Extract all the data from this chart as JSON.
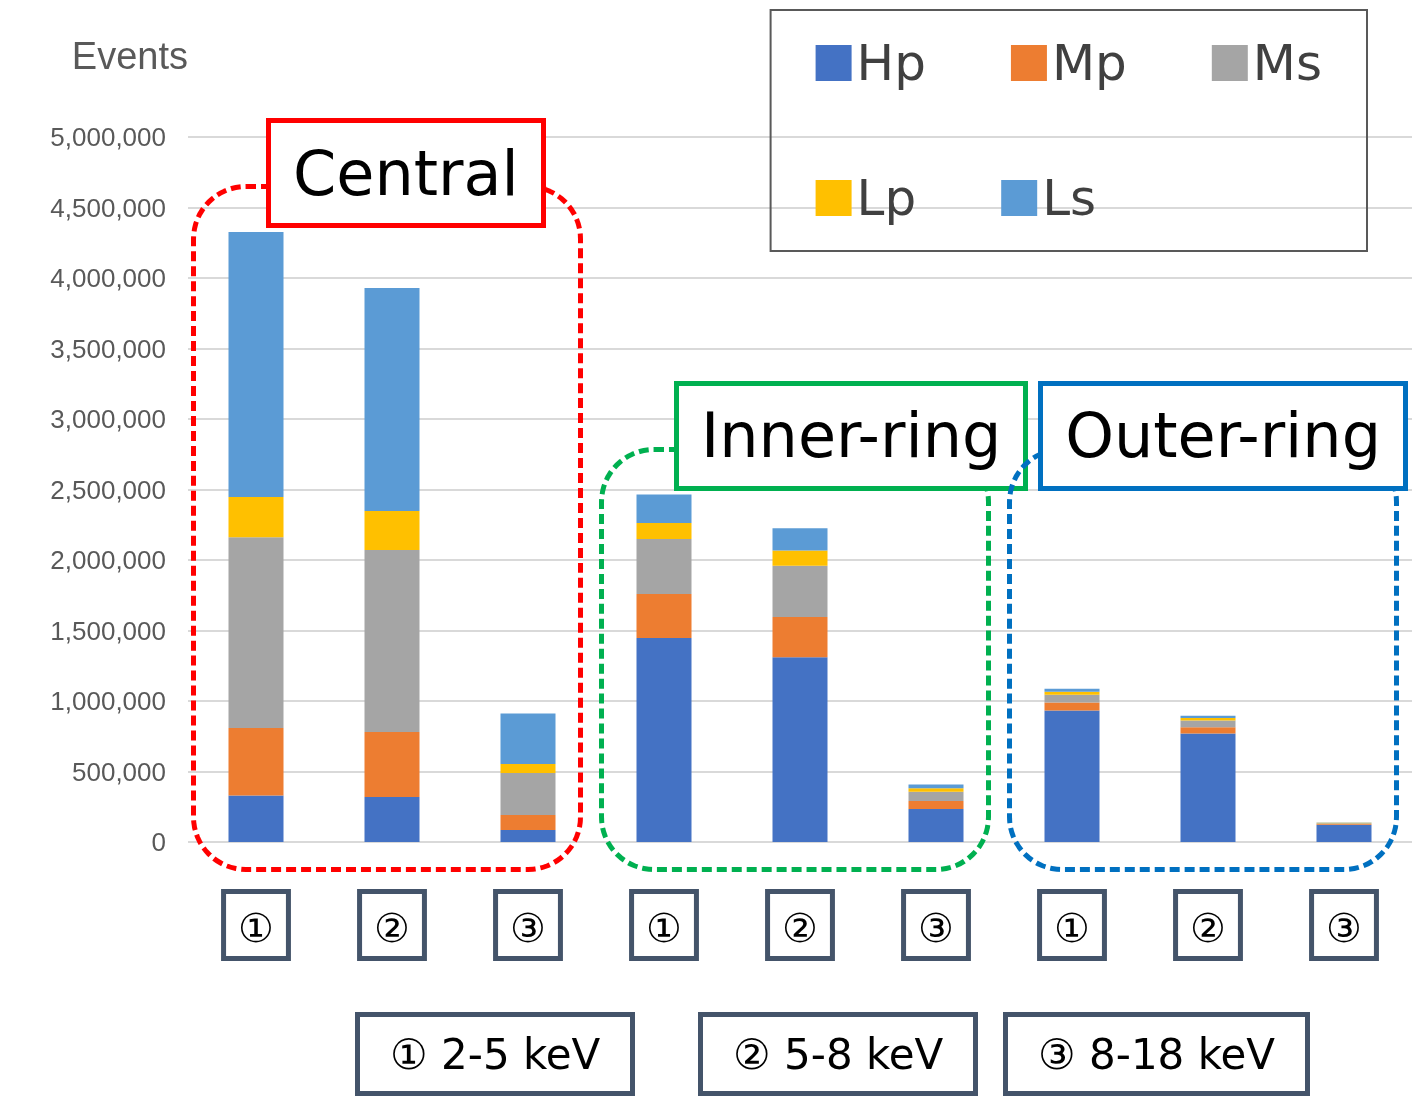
{
  "chart_data": {
    "type": "bar",
    "stacked": true,
    "ylabel": "Events",
    "categories": [
      "①",
      "②",
      "③",
      "①",
      "②",
      "③",
      "①",
      "②",
      "③"
    ],
    "series": [
      {
        "name": "Hp",
        "color": "#4472c4",
        "values": [
          330000,
          319000,
          85000,
          1447000,
          1310000,
          234000,
          933000,
          770000,
          123000
        ]
      },
      {
        "name": "Mp",
        "color": "#ed7d31",
        "values": [
          478000,
          461000,
          106000,
          312000,
          286000,
          57000,
          57000,
          43000,
          5000
        ]
      },
      {
        "name": "Ms",
        "color": "#a5a5a5",
        "values": [
          1354000,
          1291000,
          298000,
          390000,
          364000,
          66000,
          55000,
          49000,
          5000
        ]
      },
      {
        "name": "Lp",
        "color": "#ffc000",
        "values": [
          285000,
          277000,
          64000,
          113000,
          107000,
          24000,
          21000,
          17000,
          3000
        ]
      },
      {
        "name": "Ls",
        "color": "#5b9bd5",
        "values": [
          1879000,
          1581000,
          358000,
          202000,
          158000,
          26000,
          21000,
          17000,
          3000
        ]
      }
    ],
    "ylim": [
      0,
      5000000
    ],
    "yticks": [
      0,
      {
        "value": 500000,
        "label": "500,000"
      },
      {
        "value": 1000000,
        "label": "1,000,000"
      },
      {
        "value": 1500000,
        "label": "1,500,000"
      },
      {
        "value": 2000000,
        "label": "2,000,000"
      },
      {
        "value": 2500000,
        "label": "2,500,000"
      },
      {
        "value": 3000000,
        "label": "3,000,000"
      },
      {
        "value": 3500000,
        "label": "3,500,000"
      },
      {
        "value": 4000000,
        "label": "4,000,000"
      },
      {
        "value": 4500000,
        "label": "4,500,000"
      },
      {
        "value": 5000000,
        "label": "5,000,000"
      }
    ],
    "grid": "y",
    "legend": "top right",
    "annotations": [
      "Central",
      "Inner-ring",
      "Outer-ring",
      "① 2-5 keV",
      "② 5-8 keV",
      "③ 8-18 keV"
    ]
  }
}
